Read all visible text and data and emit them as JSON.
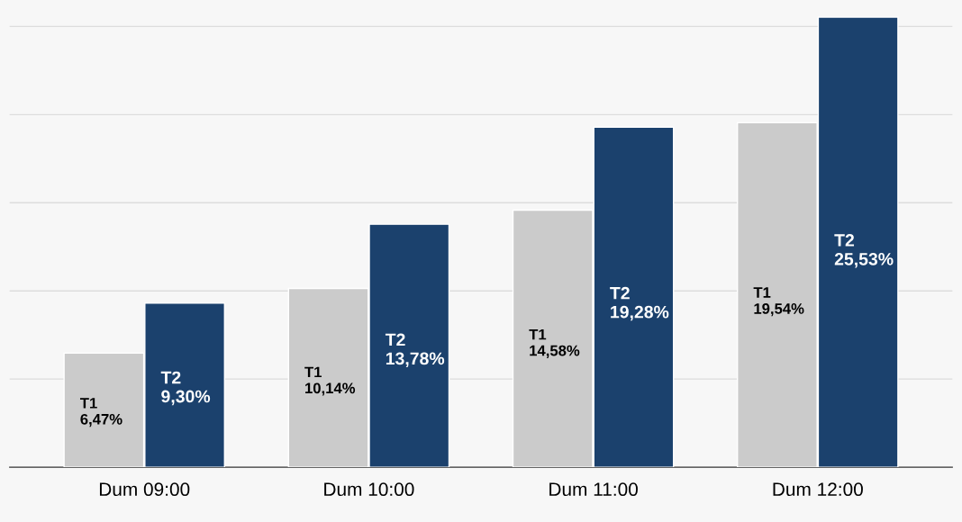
{
  "chart_data": {
    "type": "bar",
    "categories": [
      "Dum 09:00",
      "Dum 10:00",
      "Dum 11:00",
      "Dum 12:00"
    ],
    "series": [
      {
        "name": "T1",
        "color": "#cbcbcb",
        "values": [
          6.47,
          10.14,
          14.58,
          19.54
        ],
        "value_labels": [
          "6,47%",
          "10,14%",
          "14,58%",
          "19,54%"
        ]
      },
      {
        "name": "T2",
        "color": "#1b416d",
        "values": [
          9.3,
          13.78,
          19.28,
          25.53
        ],
        "value_labels": [
          "9,30%",
          "13,78%",
          "19,28%",
          "25,53%"
        ]
      }
    ],
    "ylim": [
      0,
      26.5
    ],
    "yticks": [
      {
        "value": 5,
        "label": null
      },
      {
        "value": 10,
        "label": null
      },
      {
        "value": 15,
        "label": null
      },
      {
        "value": 20,
        "label": null
      },
      {
        "value": 25,
        "label": null
      }
    ],
    "grid": "y",
    "legend": false,
    "tick_labels": "x"
  }
}
